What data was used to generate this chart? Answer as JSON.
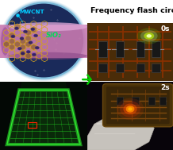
{
  "title_line1": "Frequency flash circuit",
  "title_fontsize": 6.8,
  "title_color": "#000000",
  "bg_color": "#ffffff",
  "mwcnt_label": "MWCNT",
  "sio2_label": "SiO₂",
  "mwcnt_color": "#00ccff",
  "sio2_color": "#00dd55",
  "label_0s": "0s",
  "label_2s": "2s",
  "arrow_color": "#00cc00",
  "circle_outer_color": "#7ab8d8",
  "circle_bg_color": "#1a2a5a",
  "tube_color": "#cc88cc",
  "mesh_color": "#d4a020",
  "pcb_bg": "#3a1800",
  "pcb_trace": "#6a2800",
  "green_led": "#88ff00",
  "red_led": "#ff3300",
  "bl_bg": "#050a05",
  "bl_pcb": "#004400",
  "bl_line": "#33ff33",
  "br_bg": "#050005",
  "br_pcb": "#3a2800",
  "br_trace": "#7a4800"
}
